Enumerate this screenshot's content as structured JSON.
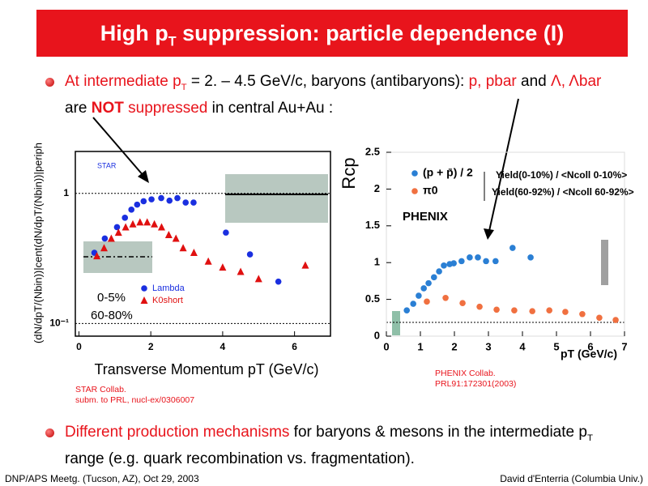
{
  "slide": {
    "title": [
      "High p",
      "T",
      " suppression: particle dependence (I)"
    ],
    "bullets": [
      {
        "parts": [
          "At intermediate p",
          "T",
          " = 2. – 4.5 GeV/c, baryons (antibaryons): ",
          "p, pbar",
          " and ",
          "Λ, Λbar",
          " are ",
          "NOT",
          " suppressed",
          " in central Au+Au :"
        ]
      },
      {
        "parts": [
          "Different production mechanisms",
          " for baryons & mesons in the intermediate p",
          "T",
          " range (e.g. quark recombination vs. fragmentation)."
        ]
      }
    ],
    "footer_left": "DNP/APS Meetg. (Tucson, AZ), Oct 29, 2003",
    "footer_right": "David d'Enterria (Columbia Univ.)"
  },
  "chart_data": [
    {
      "type": "scatter",
      "ylog": true,
      "grid": true,
      "x_label": "Transverse Momentum pT (GeV/c)",
      "y_label": "(dN/dpT/(Nbin))|cent(dN/dpT/(Nbin))|periph",
      "xlim": [
        -0.1,
        7
      ],
      "ylim": [
        0.08,
        2.1
      ],
      "xticks": [
        0,
        2,
        4,
        6
      ],
      "yticks": [
        1,
        {
          "value": 0.1,
          "label": "10⁻¹"
        }
      ],
      "series": [
        {
          "name": "Lambda",
          "color": "#1a2fe0",
          "marker": "circle",
          "x": [
            0.43,
            0.72,
            1.06,
            1.28,
            1.46,
            1.62,
            1.8,
            2.02,
            2.29,
            2.52,
            2.74,
            2.97,
            3.19,
            4.09,
            4.76,
            5.55
          ],
          "values": [
            0.35,
            0.45,
            0.55,
            0.65,
            0.75,
            0.82,
            0.87,
            0.9,
            0.92,
            0.88,
            0.92,
            0.85,
            0.85,
            0.5,
            0.34,
            0.21
          ]
        },
        {
          "name": "K0short",
          "color": "#e01010",
          "marker": "triangle",
          "x": [
            0.5,
            0.7,
            0.9,
            1.1,
            1.3,
            1.5,
            1.7,
            1.9,
            2.1,
            2.3,
            2.5,
            2.7,
            2.9,
            3.2,
            3.6,
            4.0,
            4.5,
            5.0,
            6.3
          ],
          "values": [
            0.33,
            0.38,
            0.45,
            0.5,
            0.55,
            0.58,
            0.6,
            0.6,
            0.58,
            0.55,
            0.48,
            0.45,
            0.38,
            0.35,
            0.3,
            0.27,
            0.25,
            0.22,
            0.28
          ]
        }
      ],
      "annotations": [
        "STAR",
        "0-5%",
        "60-80%"
      ],
      "caption": [
        "STAR Collab.",
        "subm. to PRL, nucl-ex/0306007"
      ]
    },
    {
      "type": "scatter",
      "grid": false,
      "x_label": "pT (GeV/c)",
      "y_label": "Rcp",
      "xlim": [
        0,
        7
      ],
      "ylim": [
        0,
        2.5
      ],
      "xticks": [
        0,
        1,
        2,
        3,
        4,
        5,
        6,
        7
      ],
      "yticks": [
        0,
        0.5,
        1,
        1.5,
        2,
        2.5
      ],
      "series": [
        {
          "name": "(p + p̄) / 2",
          "color": "#2a7fd4",
          "marker": "circle",
          "x": [
            0.6,
            0.79,
            0.95,
            1.1,
            1.24,
            1.4,
            1.55,
            1.69,
            1.86,
            1.98,
            2.21,
            2.45,
            2.69,
            2.93,
            3.21,
            3.71,
            4.24
          ],
          "values": [
            0.35,
            0.44,
            0.55,
            0.65,
            0.72,
            0.8,
            0.88,
            0.96,
            0.98,
            0.99,
            1.02,
            1.07,
            1.07,
            1.02,
            1.02,
            1.2,
            1.07
          ]
        },
        {
          "name": "π0",
          "color": "#f07040",
          "marker": "circle",
          "x": [
            1.19,
            1.74,
            2.24,
            2.74,
            3.24,
            3.76,
            4.29,
            4.79,
            5.26,
            5.76,
            6.26,
            6.74
          ],
          "values": [
            0.47,
            0.52,
            0.45,
            0.4,
            0.36,
            0.35,
            0.34,
            0.35,
            0.33,
            0.3,
            0.25,
            0.22
          ]
        }
      ],
      "annotations": [
        "PHENIX",
        "Yield(0-10%) / <Ncoll 0-10%>",
        "Yield(60-92%) / <Ncoll 60-92%>"
      ],
      "caption": [
        "PHENIX Collab.",
        "PRL91:172301(2003)"
      ]
    }
  ]
}
